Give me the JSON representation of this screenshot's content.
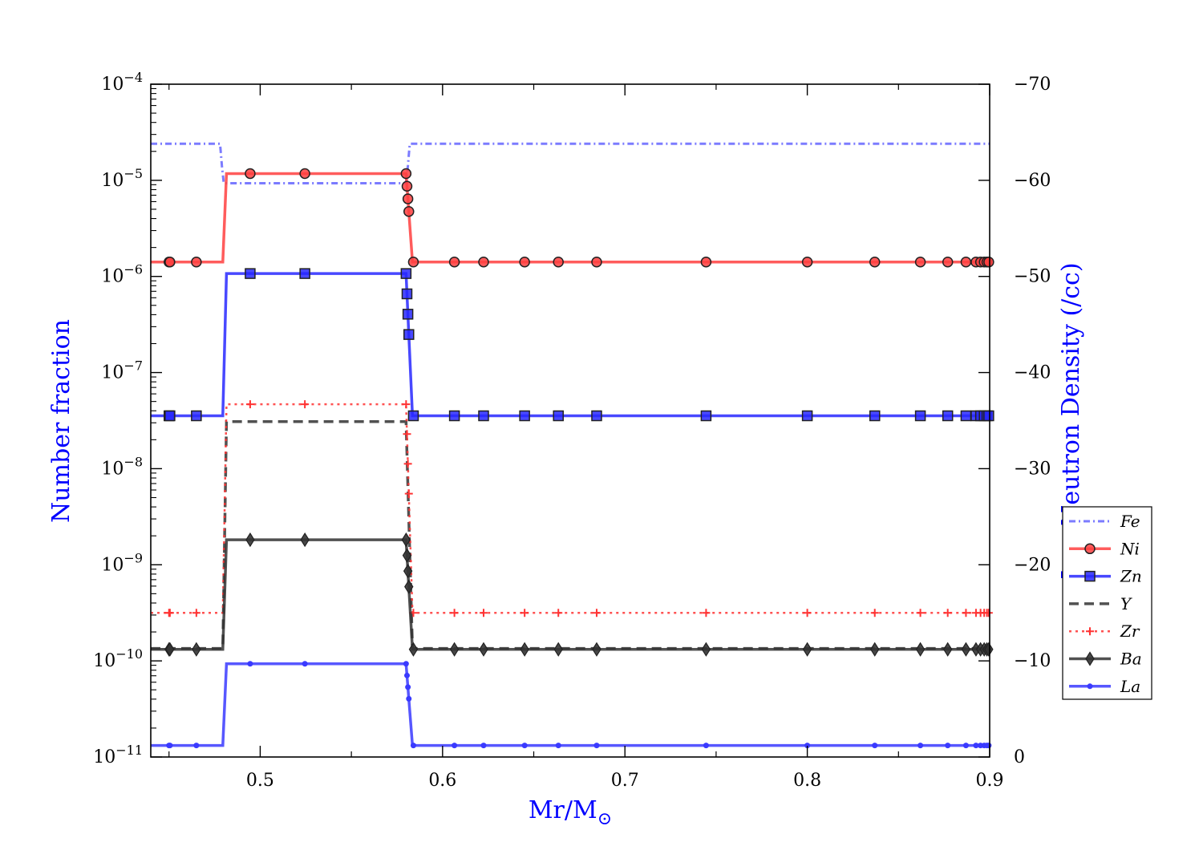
{
  "chart_data": {
    "type": "line",
    "xlabel": "Mr/M",
    "xlabel_subscript": "⊙",
    "ylabel": "Number fraction",
    "y2label": "Log Neutron Density (/cc)",
    "xlim": [
      0.44,
      0.9
    ],
    "ylim_log10": [
      -11,
      -4
    ],
    "y_scale": "log",
    "y2lim": [
      0,
      -70
    ],
    "x_ticks": [
      0.5,
      0.6,
      0.7,
      0.8,
      0.9
    ],
    "x_tick_labels": [
      "0.5",
      "0.6",
      "0.7",
      "0.8",
      "0.9"
    ],
    "y_tick_exponents": [
      -11,
      -10,
      -9,
      -8,
      -7,
      -6,
      -5,
      -4
    ],
    "y_tick_base": "10",
    "y2_ticks": [
      0,
      -10,
      -20,
      -30,
      -40,
      -50,
      -60,
      -70
    ],
    "y2_tick_labels": [
      "0",
      "−10",
      "−20",
      "−30",
      "−40",
      "−50",
      "−60",
      "−70"
    ],
    "grid": false,
    "legend_position": "right",
    "marker_x": [
      0.45,
      0.4505,
      0.465,
      0.4945,
      0.5245,
      0.58,
      0.5805,
      0.581,
      0.5815,
      0.584,
      0.6065,
      0.6225,
      0.645,
      0.6635,
      0.6845,
      0.7445,
      0.8,
      0.837,
      0.862,
      0.877,
      0.887,
      0.8925,
      0.895,
      0.897,
      0.8985,
      0.8995
    ],
    "series": [
      {
        "name": "Fe",
        "style": "densely-dashdot",
        "color": "#6464ff",
        "marker": "none",
        "x": [
          0.44,
          0.478,
          0.479,
          0.48,
          0.58,
          0.581,
          0.582,
          0.9
        ],
        "log10_y": [
          -4.62,
          -4.62,
          -4.85,
          -5.03,
          -5.03,
          -4.85,
          -4.62,
          -4.62
        ]
      },
      {
        "name": "Ni",
        "style": "solid",
        "color": "#ff4040",
        "marker": "circle",
        "x": [
          0.44,
          0.4795,
          0.4815,
          0.58,
          0.5835,
          0.9
        ],
        "log10_y": [
          -5.85,
          -5.85,
          -4.93,
          -4.93,
          -5.85,
          -5.85
        ]
      },
      {
        "name": "Zn",
        "style": "solid",
        "color": "#2828ff",
        "marker": "square",
        "x": [
          0.44,
          0.4795,
          0.4815,
          0.58,
          0.5835,
          0.9
        ],
        "log10_y": [
          -7.45,
          -7.45,
          -5.97,
          -5.97,
          -7.45,
          -7.45
        ]
      },
      {
        "name": "Y",
        "style": "dashed",
        "color": "#333333",
        "marker": "none",
        "x": [
          0.44,
          0.4795,
          0.4815,
          0.58,
          0.5835,
          0.9
        ],
        "log10_y": [
          -9.87,
          -9.87,
          -7.51,
          -7.51,
          -9.87,
          -9.87
        ]
      },
      {
        "name": "Zr",
        "style": "dotted",
        "color": "#ff3333",
        "marker": "plus",
        "x": [
          0.44,
          0.4795,
          0.4815,
          0.58,
          0.5835,
          0.9
        ],
        "log10_y": [
          -9.5,
          -9.5,
          -7.33,
          -7.33,
          -9.5,
          -9.5
        ]
      },
      {
        "name": "Ba",
        "style": "solid",
        "color": "#333333",
        "marker": "diamond",
        "x": [
          0.44,
          0.4795,
          0.4815,
          0.58,
          0.5835,
          0.9
        ],
        "log10_y": [
          -9.88,
          -9.88,
          -8.74,
          -8.74,
          -9.88,
          -9.88
        ]
      },
      {
        "name": "La",
        "style": "solid",
        "color": "#3a3aff",
        "marker": "dot",
        "x": [
          0.44,
          0.4795,
          0.4815,
          0.58,
          0.5835,
          0.9
        ],
        "log10_y": [
          -10.88,
          -10.88,
          -10.03,
          -10.03,
          -10.88,
          -10.88
        ]
      }
    ]
  }
}
